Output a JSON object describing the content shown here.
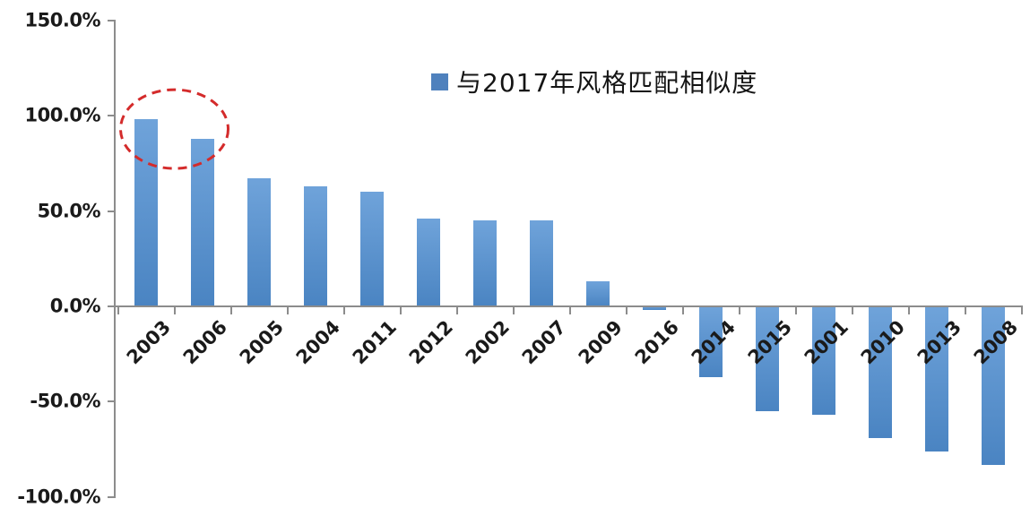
{
  "chart_data": {
    "type": "bar",
    "title": "",
    "legend": "与2017年风格匹配相似度",
    "legend_position": "top-center",
    "categories": [
      "2003",
      "2006",
      "2005",
      "2004",
      "2011",
      "2012",
      "2002",
      "2007",
      "2009",
      "2016",
      "2014",
      "2015",
      "2001",
      "2010",
      "2013",
      "2008"
    ],
    "values": [
      98,
      88,
      67,
      63,
      60,
      46,
      45,
      45,
      13,
      -2,
      -37,
      -55,
      -57,
      -69,
      -76,
      -83
    ],
    "unit": "%",
    "xlabel": "",
    "ylabel": "",
    "ylim": [
      -100,
      150
    ],
    "grid": false,
    "annotation": {
      "type": "dashed-ellipse",
      "around_categories": [
        "2003",
        "2006"
      ]
    }
  },
  "y_axis": {
    "tick_labels": [
      "150.0%",
      "100.0%",
      "50.0%",
      "0.0%",
      "-50.0%",
      "-100.0%"
    ],
    "tick_values": [
      150,
      100,
      50,
      0,
      -50,
      -100
    ]
  },
  "legend": {
    "label": "与2017年风格匹配相似度",
    "marker_color": "#4F81BD"
  },
  "colors": {
    "bar_gradient_top": "#6FA3DA",
    "bar_gradient_bottom": "#4A84C2",
    "axis": "#8C8C8C",
    "text": "#1A1A1A",
    "annotation_red": "#D42B2B",
    "background": "#FFFFFF"
  }
}
